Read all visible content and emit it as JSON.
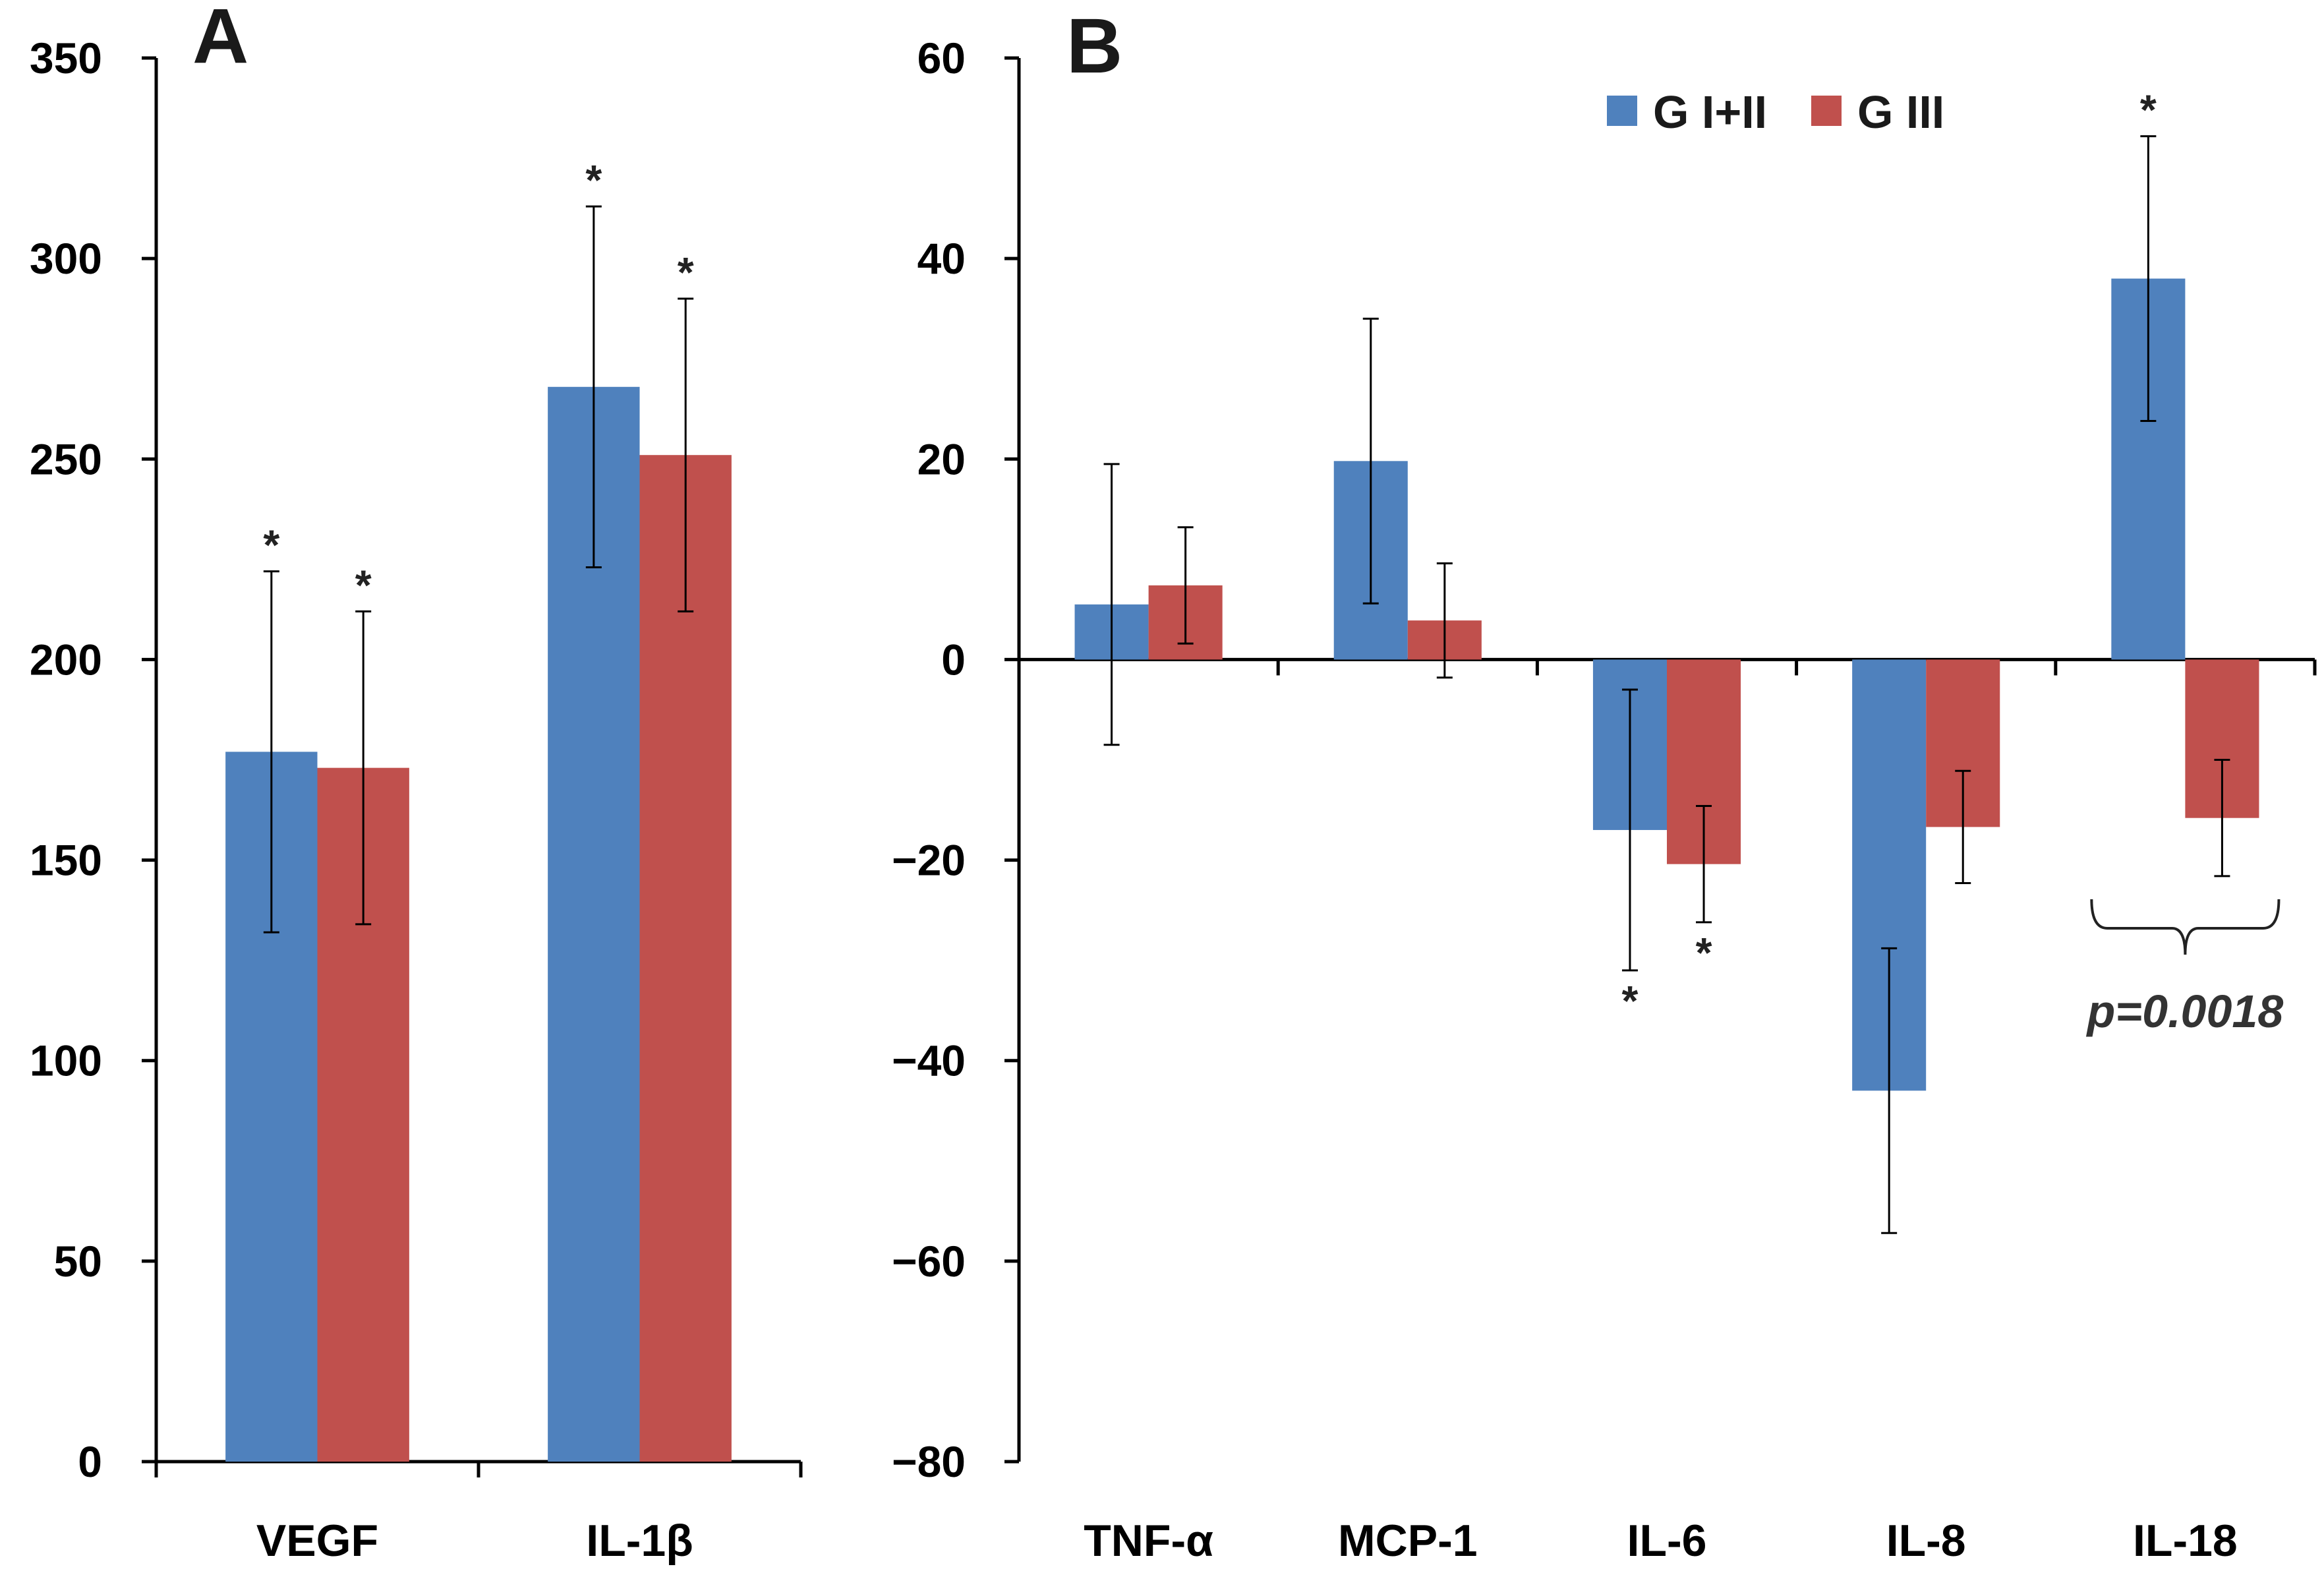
{
  "colors": {
    "g12": "#4F81BD",
    "g3": "#C0504D"
  },
  "chart_data": [
    {
      "panel": "A",
      "type": "bar",
      "categories": [
        "VEGF",
        "IL-1β"
      ],
      "ylim": [
        0,
        350
      ],
      "yticks": [
        0,
        50,
        100,
        150,
        200,
        250,
        300,
        350
      ],
      "series": [
        {
          "name": "G I+II",
          "color_key": "g12",
          "values": [
            177,
            268
          ],
          "errors": [
            45,
            45
          ],
          "stars": [
            "*",
            "*"
          ]
        },
        {
          "name": "G III",
          "color_key": "g3",
          "values": [
            173,
            251
          ],
          "errors": [
            39,
            39
          ],
          "stars": [
            "*",
            "*"
          ]
        }
      ]
    },
    {
      "panel": "B",
      "type": "bar",
      "categories": [
        "TNF-α",
        "MCP-1",
        "IL-6",
        "IL-8",
        "IL-18"
      ],
      "ylim": [
        -80,
        60
      ],
      "yticks": [
        -80,
        -60,
        -40,
        -20,
        0,
        20,
        40,
        60
      ],
      "series": [
        {
          "name": "G I+II",
          "color_key": "g12",
          "values": [
            5.5,
            19.8,
            -17,
            -43,
            38
          ],
          "errors": [
            14,
            14.2,
            14,
            14.2,
            14.2
          ],
          "stars": [
            "",
            "",
            "*",
            "",
            "*"
          ]
        },
        {
          "name": "G III",
          "color_key": "g3",
          "values": [
            7.4,
            3.9,
            -20.4,
            -16.7,
            -15.8
          ],
          "errors": [
            5.8,
            5.7,
            5.8,
            5.6,
            5.8
          ],
          "stars": [
            "",
            "",
            "*",
            "",
            ""
          ]
        }
      ],
      "annotation": {
        "text": "p=0.0018",
        "category_index": 4
      }
    }
  ],
  "legend": {
    "items": [
      {
        "label": "G I+II",
        "color_key": "g12"
      },
      {
        "label": "G III",
        "color_key": "g3"
      }
    ]
  }
}
